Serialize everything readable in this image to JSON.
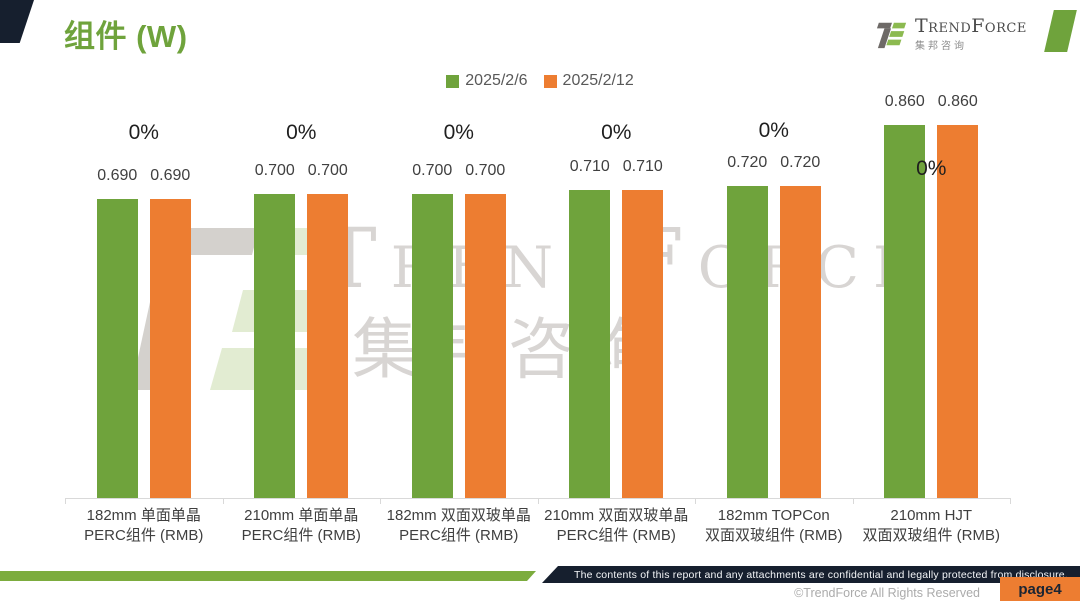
{
  "page_title": "组件 (W)",
  "brand": {
    "logo_text": "TrendForce",
    "logo_subtext": "集邦咨询"
  },
  "legend": [
    {
      "label": "2025/2/6",
      "color": "#6FA33C"
    },
    {
      "label": "2025/2/12",
      "color": "#ED7D31"
    }
  ],
  "chart_data": {
    "type": "bar",
    "title": "组件 (W)",
    "categories": [
      "182mm 单面单晶\nPERC组件 (RMB)",
      "210mm 单面单晶\nPERC组件 (RMB)",
      "182mm 双面双玻单晶\nPERC组件 (RMB)",
      "210mm 双面双玻单晶\nPERC组件 (RMB)",
      "182mm TOPCon\n双面双玻组件 (RMB)",
      "210mm HJT\n双面双玻组件 (RMB)"
    ],
    "series": [
      {
        "name": "2025/2/6",
        "color": "#6FA33C",
        "values": [
          0.69,
          0.7,
          0.7,
          0.71,
          0.72,
          0.86
        ]
      },
      {
        "name": "2025/2/12",
        "color": "#ED7D31",
        "values": [
          0.69,
          0.7,
          0.7,
          0.71,
          0.72,
          0.86
        ]
      }
    ],
    "change_labels": [
      "0%",
      "0%",
      "0%",
      "0%",
      "0%",
      "0%"
    ],
    "value_decimals": 3,
    "ylim": [
      0,
      0.93
    ],
    "legend_position": "top",
    "grid": false
  },
  "watermark": {
    "line1": "TrendForce",
    "line2": "集邦咨询"
  },
  "footer": {
    "confidential": "The contents of this report and any attachments are confidential and legally protected from disclosure.",
    "copyright": "©TrendForce All Rights Reserved",
    "page": "page4"
  }
}
